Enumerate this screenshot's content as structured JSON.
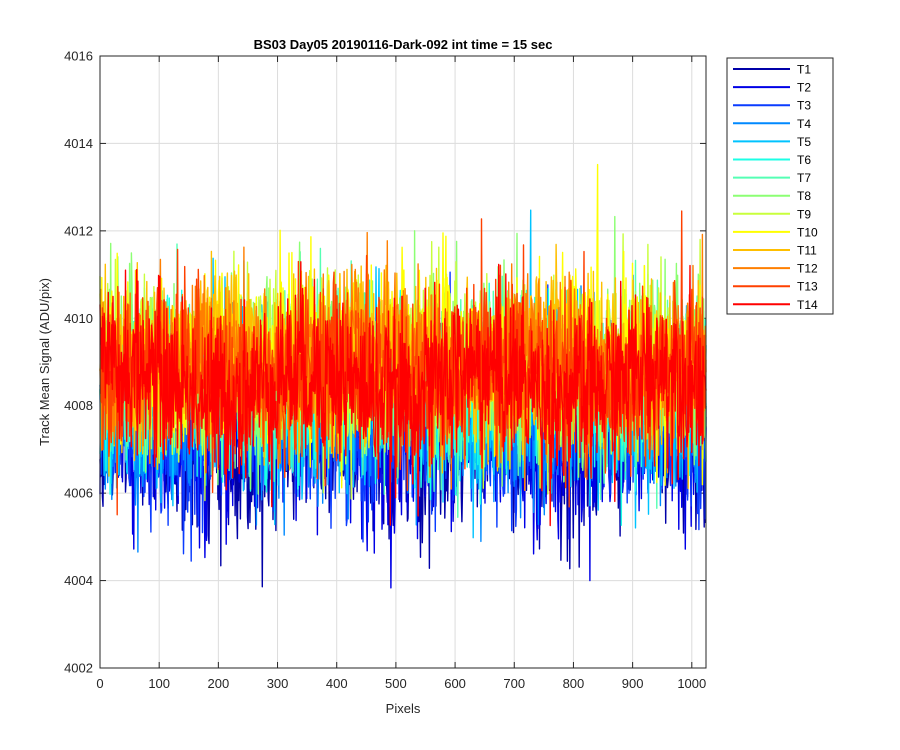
{
  "chart_data": {
    "type": "line",
    "title": "BS03 Day05 20190116-Dark-092 int time = 15 sec",
    "xlabel": "Pixels",
    "ylabel": "Track Mean Signal (ADU/pix)",
    "xlim": [
      0,
      1024
    ],
    "ylim": [
      4002,
      4016
    ],
    "xticks": [
      0,
      100,
      200,
      300,
      400,
      500,
      600,
      700,
      800,
      900,
      1000
    ],
    "yticks": [
      4002,
      4004,
      4006,
      4008,
      4010,
      4012,
      4014,
      4016
    ],
    "grid": true,
    "legend_position": "outside-top-right",
    "n_points": 1024,
    "series": [
      {
        "name": "T1",
        "color": "#0000a8",
        "mean": 4007.1,
        "noise_sd": 0.95
      },
      {
        "name": "T2",
        "color": "#0000e6",
        "mean": 4007.3,
        "noise_sd": 0.95
      },
      {
        "name": "T3",
        "color": "#0a3cff",
        "mean": 4007.6,
        "noise_sd": 0.95
      },
      {
        "name": "T4",
        "color": "#0089ff",
        "mean": 4007.9,
        "noise_sd": 0.95
      },
      {
        "name": "T5",
        "color": "#00c3ff",
        "mean": 4008.2,
        "noise_sd": 0.95
      },
      {
        "name": "T6",
        "color": "#1cffe6",
        "mean": 4008.4,
        "noise_sd": 0.95
      },
      {
        "name": "T7",
        "color": "#55ffb4",
        "mean": 4008.6,
        "noise_sd": 0.95
      },
      {
        "name": "T8",
        "color": "#8cff73",
        "mean": 4008.8,
        "noise_sd": 0.95
      },
      {
        "name": "T9",
        "color": "#c8ff3c",
        "mean": 4009.0,
        "noise_sd": 0.95
      },
      {
        "name": "T10",
        "color": "#ffff00",
        "mean": 4009.1,
        "noise_sd": 0.95
      },
      {
        "name": "T11",
        "color": "#ffbf00",
        "mean": 4009.0,
        "noise_sd": 0.95
      },
      {
        "name": "T12",
        "color": "#ff7f00",
        "mean": 4008.9,
        "noise_sd": 0.95
      },
      {
        "name": "T13",
        "color": "#ff4000",
        "mean": 4008.7,
        "noise_sd": 0.95
      },
      {
        "name": "T14",
        "color": "#ff0000",
        "mean": 4008.5,
        "noise_sd": 0.95
      }
    ]
  }
}
